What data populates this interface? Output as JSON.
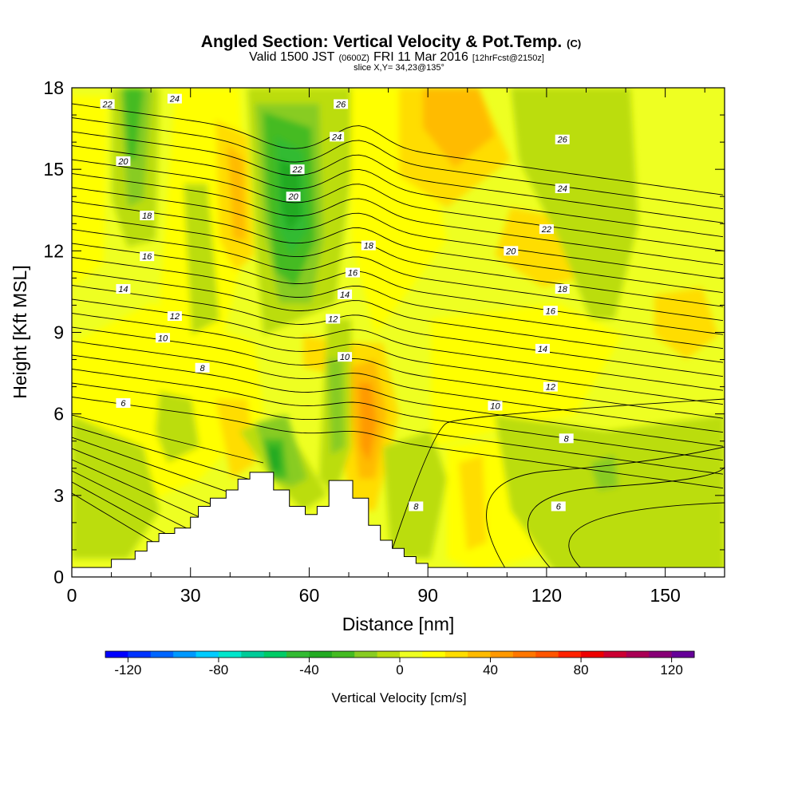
{
  "chart_data": {
    "type": "heatmap",
    "title": "Angled Section: Vertical Velocity & Pot.Temp.",
    "title_suffix": "(C)",
    "subtitle": {
      "valid_prefix": "Valid 1500 JST",
      "utc": "(0600Z)",
      "valid_suffix": "FRI 11 Mar 2016",
      "forecast": "[12hrFcst@2150z]"
    },
    "slice_label": "slice X,Y= 34,23@135°",
    "xlabel": "Distance [nm]",
    "ylabel": "Height [Kft MSL]",
    "xlim": [
      0,
      165
    ],
    "ylim": [
      0,
      18
    ],
    "x_ticks": [
      "0",
      "30",
      "60",
      "90",
      "120",
      "150"
    ],
    "y_ticks": [
      "0",
      "3",
      "6",
      "9",
      "12",
      "15",
      "18"
    ],
    "colorbar": {
      "label": "Vertical Velocity [cm/s]",
      "ticks": [
        "-120",
        "-80",
        "-40",
        "0",
        "40",
        "80",
        "120"
      ],
      "range": [
        -130,
        130
      ],
      "colors": [
        "#0000ff",
        "#0033ff",
        "#0066ff",
        "#0099ff",
        "#00ccff",
        "#00e6cc",
        "#00cc99",
        "#00cc66",
        "#33bb33",
        "#22aa22",
        "#44bb22",
        "#88cc22",
        "#bbdd11",
        "#eeff22",
        "#ffff00",
        "#ffdd00",
        "#ffbb00",
        "#ff9900",
        "#ff7700",
        "#ff5500",
        "#ff2200",
        "#ee0000",
        "#cc0033",
        "#aa0055",
        "#880077",
        "#660099"
      ]
    },
    "terrain": {
      "x": [
        0,
        10,
        10,
        16,
        16,
        19,
        19,
        22,
        22,
        26,
        26,
        30,
        30,
        32,
        32,
        35,
        35,
        39,
        39,
        42,
        42,
        45,
        45,
        51,
        51,
        55,
        55,
        59,
        59,
        62,
        62,
        65,
        65,
        71,
        71,
        75,
        75,
        78,
        78,
        81,
        81,
        84,
        84,
        87,
        87,
        90,
        90,
        165
      ],
      "y": [
        0.35,
        0.35,
        0.65,
        0.65,
        0.95,
        0.95,
        1.3,
        1.3,
        1.6,
        1.6,
        1.8,
        1.8,
        2.2,
        2.2,
        2.6,
        2.6,
        2.9,
        2.9,
        3.2,
        3.2,
        3.6,
        3.6,
        3.85,
        3.85,
        3.2,
        3.2,
        2.6,
        2.6,
        2.3,
        2.3,
        2.6,
        2.6,
        3.55,
        3.55,
        2.9,
        2.9,
        1.9,
        1.9,
        1.35,
        1.35,
        1.05,
        1.05,
        0.75,
        0.75,
        0.5,
        0.5,
        0.35,
        0.35
      ]
    },
    "isentrope_labels": [
      {
        "text": "22",
        "x": 9,
        "y": 17.4
      },
      {
        "text": "24",
        "x": 26,
        "y": 17.6
      },
      {
        "text": "20",
        "x": 13,
        "y": 15.3
      },
      {
        "text": "18",
        "x": 19,
        "y": 13.3
      },
      {
        "text": "16",
        "x": 19,
        "y": 11.8
      },
      {
        "text": "14",
        "x": 13,
        "y": 10.6
      },
      {
        "text": "12",
        "x": 26,
        "y": 9.6
      },
      {
        "text": "10",
        "x": 23,
        "y": 8.8
      },
      {
        "text": "8",
        "x": 33,
        "y": 7.7
      },
      {
        "text": "6",
        "x": 13,
        "y": 6.4
      },
      {
        "text": "26",
        "x": 68,
        "y": 17.4
      },
      {
        "text": "24",
        "x": 67,
        "y": 16.2
      },
      {
        "text": "22",
        "x": 57,
        "y": 15.0
      },
      {
        "text": "20",
        "x": 56,
        "y": 14.0
      },
      {
        "text": "18",
        "x": 75,
        "y": 12.2
      },
      {
        "text": "16",
        "x": 71,
        "y": 11.2
      },
      {
        "text": "14",
        "x": 69,
        "y": 10.4
      },
      {
        "text": "12",
        "x": 66,
        "y": 9.5
      },
      {
        "text": "10",
        "x": 69,
        "y": 8.1
      },
      {
        "text": "26",
        "x": 124,
        "y": 16.1
      },
      {
        "text": "24",
        "x": 124,
        "y": 14.3
      },
      {
        "text": "22",
        "x": 120,
        "y": 12.8
      },
      {
        "text": "20",
        "x": 111,
        "y": 12.0
      },
      {
        "text": "18",
        "x": 124,
        "y": 10.6
      },
      {
        "text": "16",
        "x": 121,
        "y": 9.8
      },
      {
        "text": "14",
        "x": 119,
        "y": 8.4
      },
      {
        "text": "12",
        "x": 121,
        "y": 7.0
      },
      {
        "text": "10",
        "x": 107,
        "y": 6.3
      },
      {
        "text": "8",
        "x": 125,
        "y": 5.1
      },
      {
        "text": "8",
        "x": 87,
        "y": 2.6
      },
      {
        "text": "6",
        "x": 123,
        "y": 2.6
      }
    ]
  }
}
